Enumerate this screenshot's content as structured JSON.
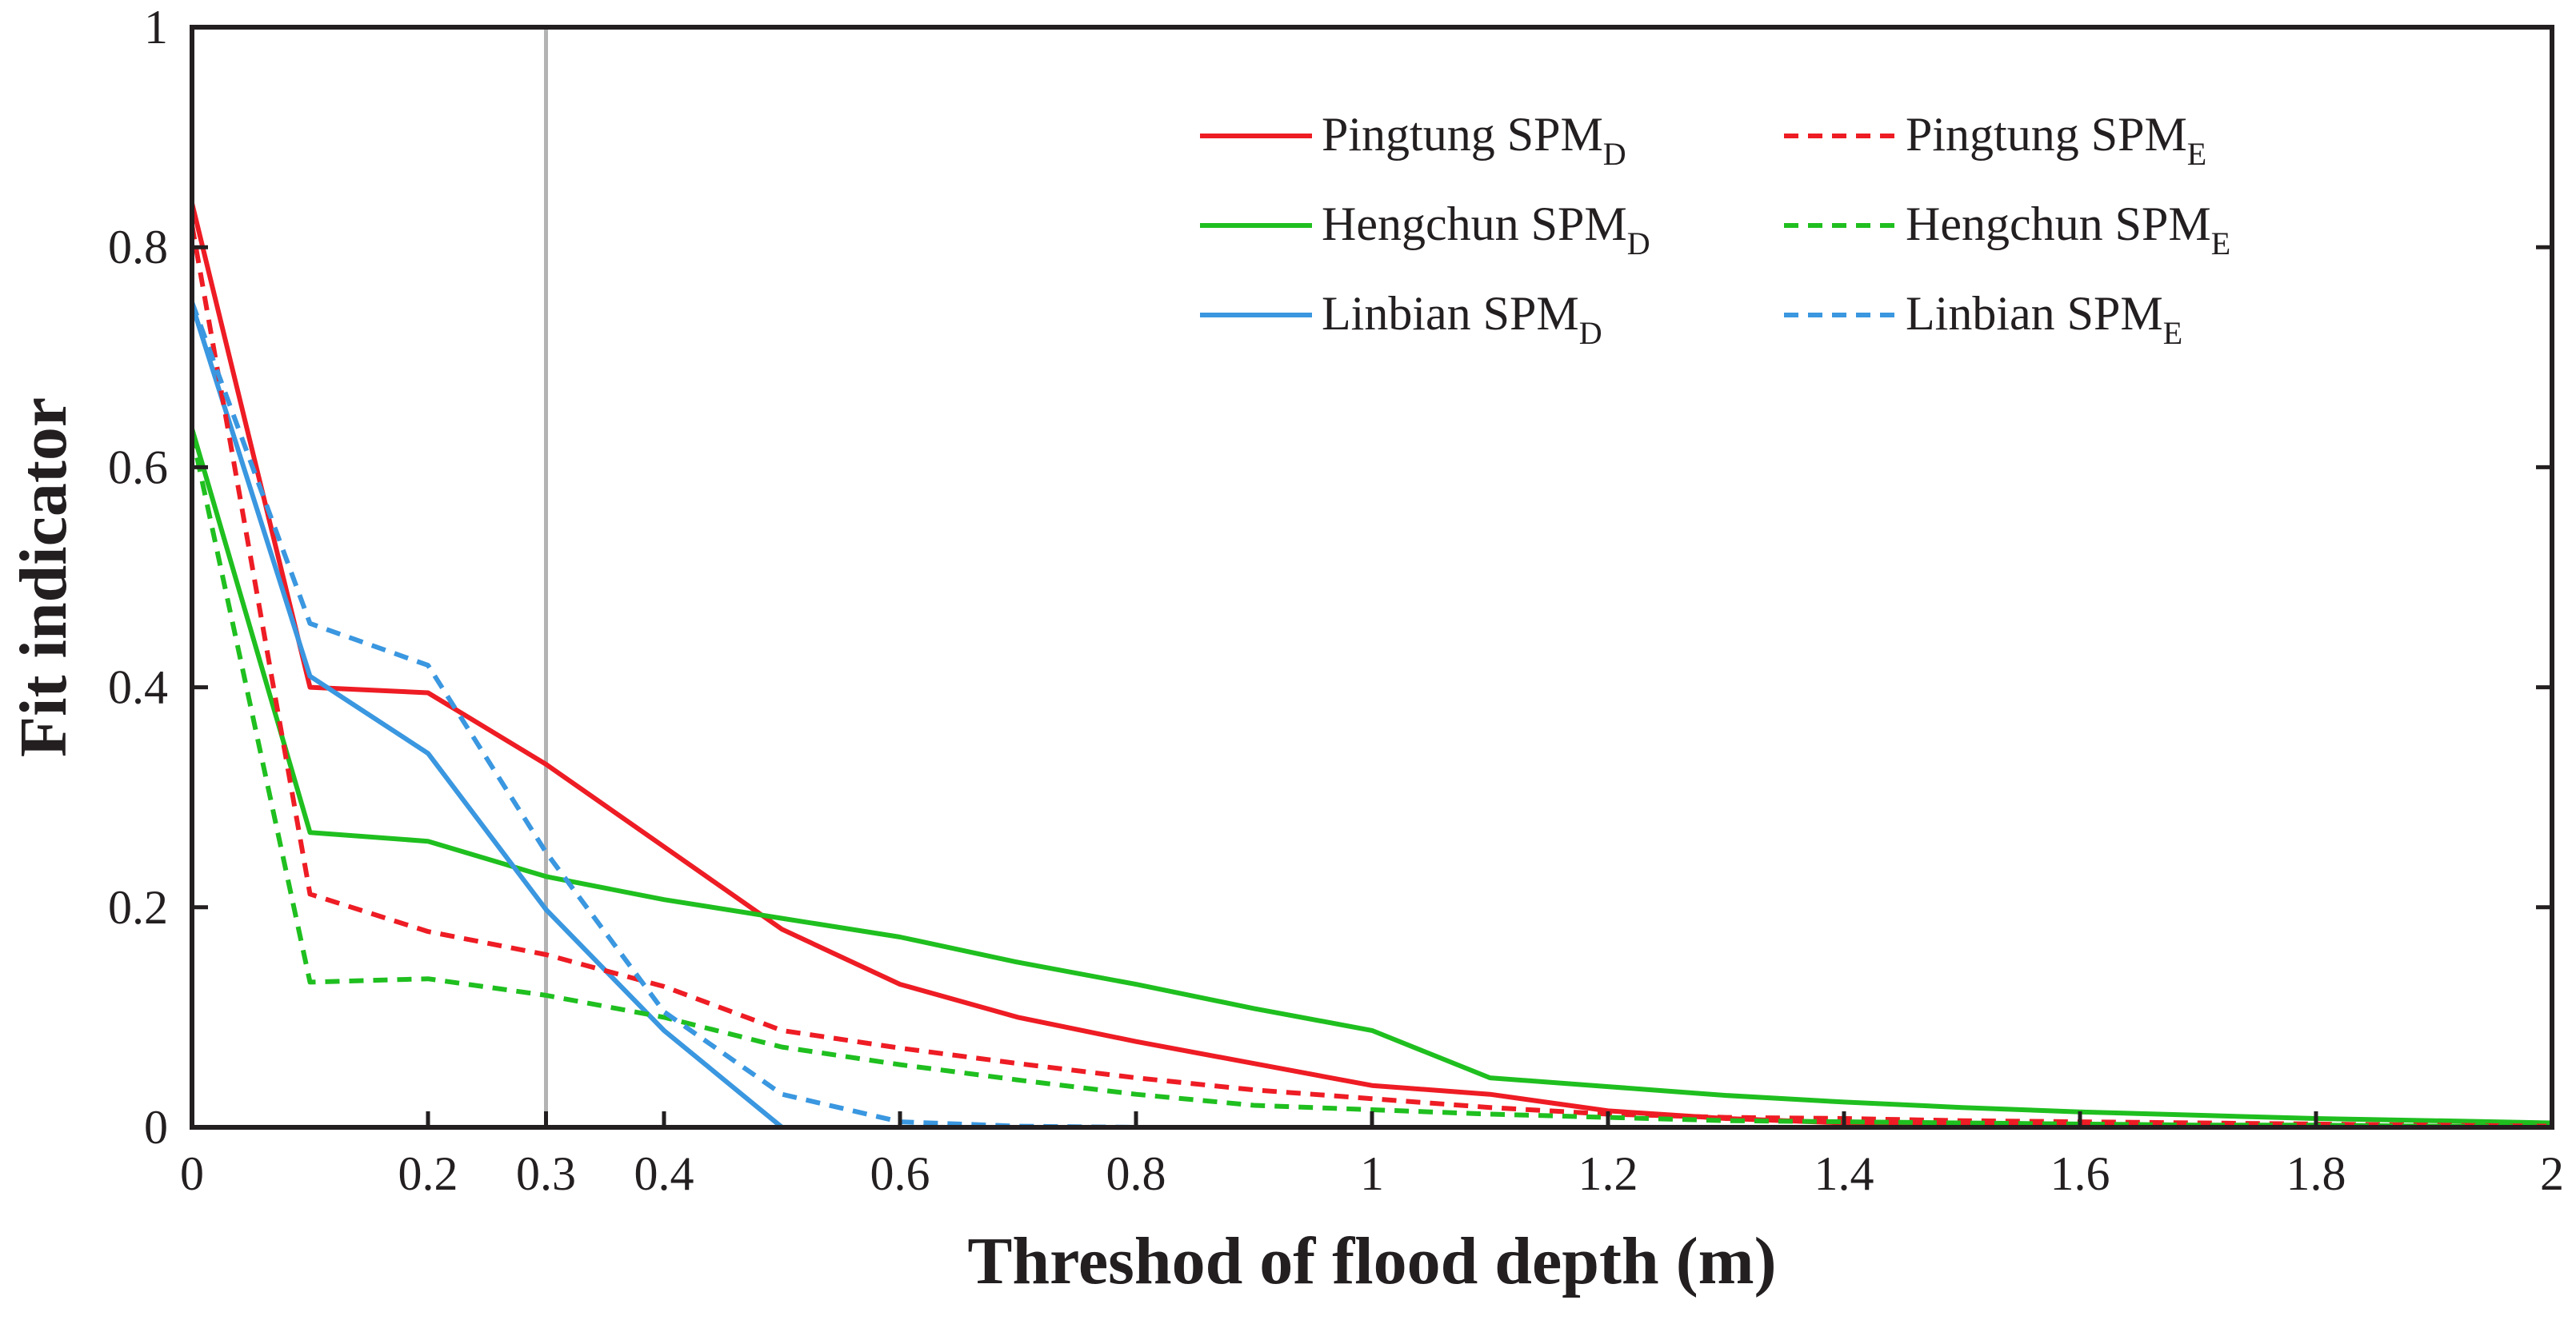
{
  "chart_data": {
    "type": "line",
    "title": "",
    "xlabel": "Threshod of flood depth (m)",
    "ylabel": "Fit indicator",
    "xlim": [
      0,
      2
    ],
    "ylim": [
      0,
      1
    ],
    "grid": false,
    "legend_placement": "top-right",
    "x_ticks": [
      {
        "value": 0,
        "label": "0"
      },
      {
        "value": 0.2,
        "label": "0.2"
      },
      {
        "value": 0.3,
        "label": "0.3"
      },
      {
        "value": 0.4,
        "label": "0.4"
      },
      {
        "value": 0.6,
        "label": "0.6"
      },
      {
        "value": 0.8,
        "label": "0.8"
      },
      {
        "value": 1.0,
        "label": "1"
      },
      {
        "value": 1.2,
        "label": "1.2"
      },
      {
        "value": 1.4,
        "label": "1.4"
      },
      {
        "value": 1.6,
        "label": "1.6"
      },
      {
        "value": 1.8,
        "label": "1.8"
      },
      {
        "value": 2.0,
        "label": "2"
      }
    ],
    "y_ticks": [
      {
        "value": 0,
        "label": "0"
      },
      {
        "value": 0.2,
        "label": "0.2"
      },
      {
        "value": 0.4,
        "label": "0.4"
      },
      {
        "value": 0.6,
        "label": "0.6"
      },
      {
        "value": 0.8,
        "label": "0.8"
      },
      {
        "value": 1,
        "label": "1"
      }
    ],
    "reference_line": {
      "x": 0.3,
      "color": "#b3b3b3"
    },
    "series": [
      {
        "name": "Pingtung SPM",
        "sub": "D",
        "color": "#ee1c24",
        "dash": "solid",
        "x": [
          0,
          0.1,
          0.2,
          0.3,
          0.4,
          0.5,
          0.6,
          0.7,
          0.8,
          0.9,
          1.0,
          1.1,
          1.2,
          1.3,
          1.4,
          1.5,
          1.6,
          1.7,
          1.8,
          1.9,
          2.0
        ],
        "values": [
          0.84,
          0.4,
          0.395,
          0.33,
          0.255,
          0.18,
          0.13,
          0.1,
          0.078,
          0.058,
          0.038,
          0.03,
          0.015,
          0.008,
          0.004,
          0.002,
          0.001,
          0.001,
          0.001,
          0.001,
          0.001
        ]
      },
      {
        "name": "Hengchun SPM",
        "sub": "D",
        "color": "#1fbf1f",
        "dash": "solid",
        "x": [
          0,
          0.1,
          0.2,
          0.3,
          0.4,
          0.5,
          0.6,
          0.7,
          0.8,
          0.9,
          1.0,
          1.1,
          1.2,
          1.3,
          1.4,
          1.5,
          1.6,
          1.7,
          1.8,
          1.9,
          2.0
        ],
        "values": [
          0.635,
          0.268,
          0.26,
          0.228,
          0.207,
          0.19,
          0.173,
          0.15,
          0.13,
          0.108,
          0.088,
          0.045,
          0.037,
          0.029,
          0.023,
          0.018,
          0.014,
          0.011,
          0.008,
          0.006,
          0.004
        ]
      },
      {
        "name": "Linbian SPM",
        "sub": "D",
        "color": "#3a97e0",
        "dash": "solid",
        "x": [
          0,
          0.1,
          0.2,
          0.3,
          0.4,
          0.5,
          0.6,
          0.7,
          0.8,
          0.9,
          1.0,
          1.1,
          1.2,
          1.3,
          1.4,
          1.5,
          1.6,
          1.7,
          1.8,
          1.9,
          2.0
        ],
        "values": [
          0.748,
          0.41,
          0.34,
          0.198,
          0.088,
          0.0,
          0.0,
          0.0,
          0.0,
          0.0,
          0.0,
          0.0,
          0.0,
          0.0,
          0.0,
          0.0,
          0.0,
          0.0,
          0.0,
          0.0,
          0.0
        ]
      },
      {
        "name": "Pingtung SPM",
        "sub": "E",
        "color": "#ee1c24",
        "dash": "dashed",
        "x": [
          0,
          0.1,
          0.2,
          0.3,
          0.4,
          0.5,
          0.6,
          0.7,
          0.8,
          0.9,
          1.0,
          1.1,
          1.2,
          1.3,
          1.4,
          1.5,
          1.6,
          1.7,
          1.8,
          1.9,
          2.0
        ],
        "values": [
          0.82,
          0.212,
          0.178,
          0.157,
          0.128,
          0.088,
          0.072,
          0.058,
          0.045,
          0.034,
          0.026,
          0.018,
          0.012,
          0.009,
          0.008,
          0.006,
          0.005,
          0.004,
          0.003,
          0.002,
          0.001
        ]
      },
      {
        "name": "Hengchun SPM",
        "sub": "E",
        "color": "#1fbf1f",
        "dash": "dashed",
        "x": [
          0,
          0.1,
          0.2,
          0.3,
          0.4,
          0.5,
          0.6,
          0.7,
          0.8,
          0.9,
          1.0,
          1.1,
          1.2,
          1.3,
          1.4,
          1.5,
          1.6,
          1.7,
          1.8,
          1.9,
          2.0
        ],
        "values": [
          0.63,
          0.132,
          0.135,
          0.12,
          0.1,
          0.073,
          0.057,
          0.043,
          0.03,
          0.02,
          0.016,
          0.012,
          0.009,
          0.006,
          0.005,
          0.004,
          0.003,
          0.002,
          0.002,
          0.001,
          0.001
        ]
      },
      {
        "name": "Linbian SPM",
        "sub": "E",
        "color": "#3a97e0",
        "dash": "dashed",
        "x": [
          0,
          0.1,
          0.2,
          0.3,
          0.4,
          0.5,
          0.6,
          0.7,
          0.8,
          0.9,
          1.0,
          1.1,
          1.2,
          1.3,
          1.4,
          1.5,
          1.6,
          1.7,
          1.8,
          1.9,
          2.0
        ],
        "values": [
          0.75,
          0.458,
          0.42,
          0.25,
          0.105,
          0.03,
          0.005,
          0.001,
          0.0,
          0.0,
          0.0,
          0.0,
          0.0,
          0.0,
          0.0,
          0.0,
          0.0,
          0.0,
          0.0,
          0.0,
          0.0
        ]
      }
    ]
  }
}
